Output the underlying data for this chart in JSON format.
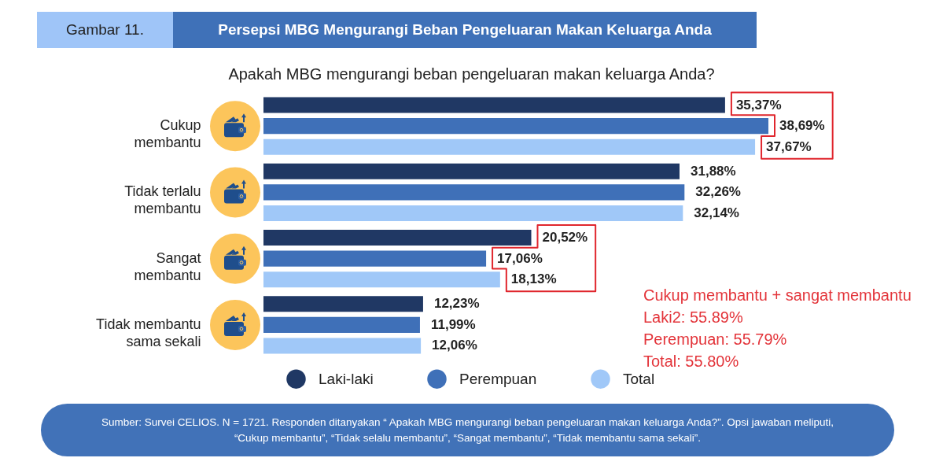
{
  "chart_data": {
    "type": "bar",
    "orientation": "horizontal",
    "title": "Persepsi MBG Mengurangi Beban Pengeluaran Makan Keluarga Anda",
    "subtitle": "Apakah MBG mengurangi beban pengeluaran makan keluarga Anda?",
    "categories": [
      "Cukup membantu",
      "Tidak terlalu membantu",
      "Sangat membantu",
      "Tidak membantu sama sekali"
    ],
    "series": [
      {
        "name": "Laki-laki",
        "color": "#203864",
        "values": [
          35.37,
          31.88,
          20.52,
          12.23
        ],
        "value_labels": [
          "35,37%",
          "31,88%",
          "20,52%",
          "12,23%"
        ]
      },
      {
        "name": "Perempuan",
        "color": "#3f70b8",
        "values": [
          38.69,
          32.26,
          17.06,
          11.99
        ],
        "value_labels": [
          "38,69%",
          "32,26%",
          "17,06%",
          "11,99%"
        ]
      },
      {
        "name": "Total",
        "color": "#a0c8f8",
        "values": [
          37.67,
          32.14,
          18.13,
          12.06
        ],
        "value_labels": [
          "37,67%",
          "32,14%",
          "18,13%",
          "12,06%"
        ]
      }
    ],
    "legend": "bottom",
    "tick_labels": "y",
    "annotations": [
      "Gambar 11.",
      "Cukup membantu + sangat membantu",
      "Laki2: 55.89%",
      "Perempuan: 55.79%",
      "Total: 55.80%",
      "Sumber: Survei CELIOS. N = 1721. Responden ditanyakan “ Apakah MBG mengurangi beban pengeluaran makan keluarga Anda?”. Opsi jawaban meliputi, “Cukup membantu”, “Tidak selalu membantu”, “Sangat membantu”, “Tidak membantu sama sekali”."
    ]
  }
}
